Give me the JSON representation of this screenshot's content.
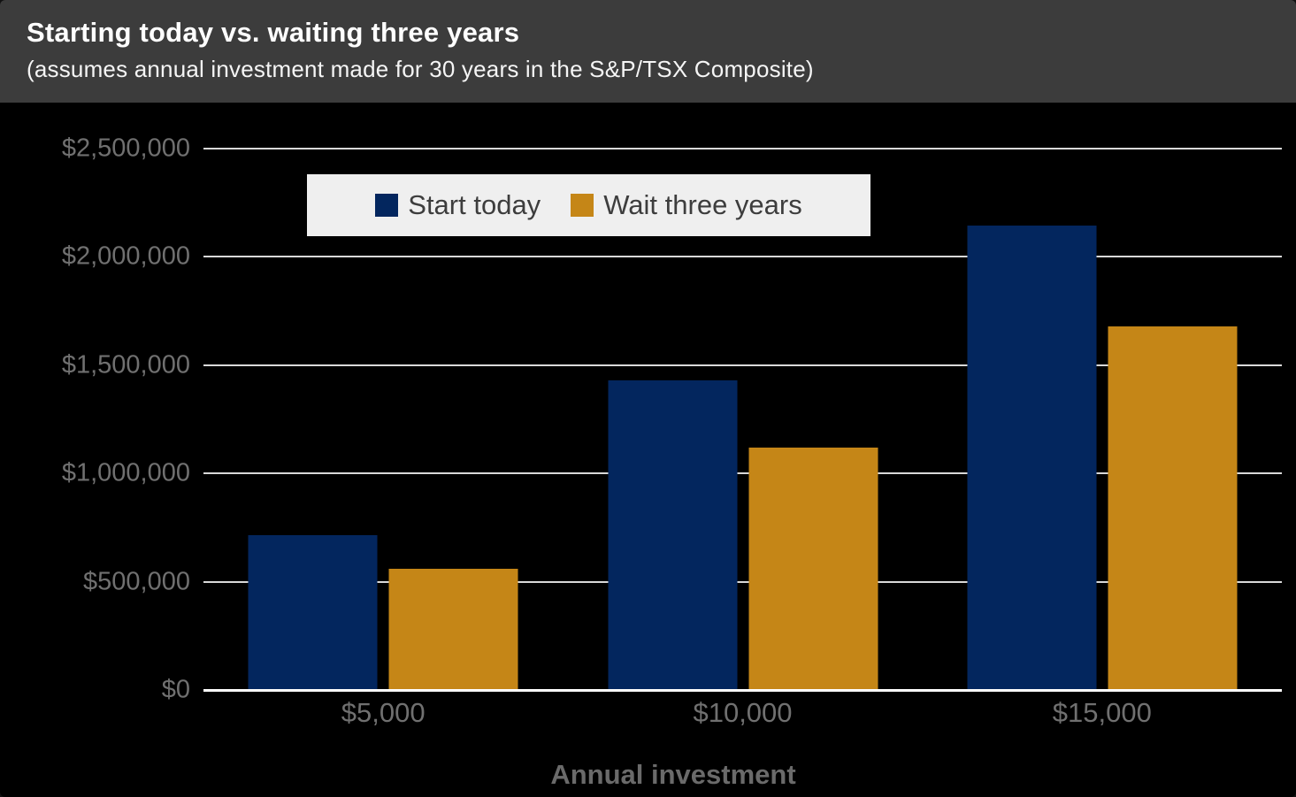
{
  "header": {
    "title": "Starting today vs. waiting three years",
    "subtitle": "(assumes annual investment made for 30 years in the S&P/TSX Composite)"
  },
  "colors": {
    "start_today": "#03265e",
    "wait_three_years": "#c58617",
    "header_bg": "#3c3c3c",
    "chart_bg": "#000000",
    "gridline": "#d9d9d9",
    "baseline": "#ffffff",
    "axis_text": "#707070",
    "legend_bg": "#efefef",
    "legend_text": "#3d3d3d"
  },
  "chart_data": {
    "type": "bar",
    "title": "Starting today vs. waiting three years",
    "subtitle": "(assumes annual investment made for 30 years in the S&P/TSX Composite)",
    "categories": [
      "$5,000",
      "$10,000",
      "$15,000"
    ],
    "series": [
      {
        "name": "Start today",
        "color": "#03265e",
        "values": [
          715000,
          1430000,
          2145000
        ]
      },
      {
        "name": "Wait three years",
        "color": "#c58617",
        "values": [
          560000,
          1120000,
          1680000
        ]
      }
    ],
    "xlabel": "Annual investment",
    "ylabel": "",
    "ylim": [
      0,
      2500000
    ],
    "ytick_interval": 500000,
    "ytick_labels": [
      "$0",
      "$500,000",
      "$1,000,000",
      "$1,500,000",
      "$2,000,000",
      "$2,500,000"
    ],
    "grid": true,
    "legend_position": "top-center"
  },
  "legend": {
    "items": [
      {
        "label": "Start today"
      },
      {
        "label": "Wait three years"
      }
    ]
  },
  "xaxis": {
    "label": "Annual investment"
  }
}
